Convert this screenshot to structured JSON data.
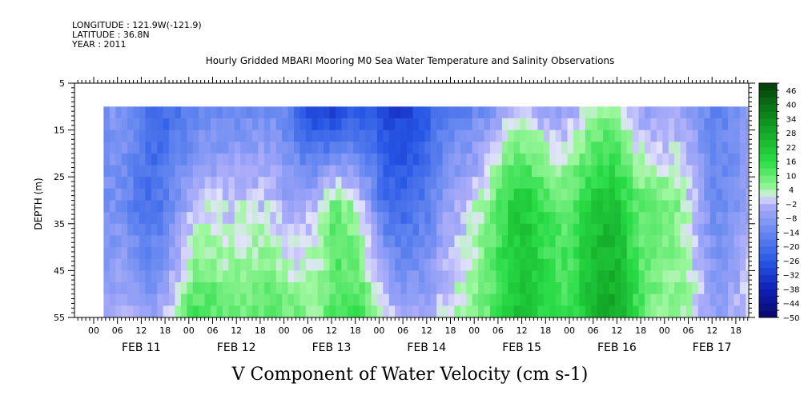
{
  "header": {
    "longitude": "LONGITUDE : 121.9W(-121.9)",
    "latitude": "LATITUDE : 36.8N",
    "year": "YEAR : 2011"
  },
  "chart_data": {
    "type": "heatmap",
    "title": "Hourly Gridded MBARI Mooring M0 Sea Water Temperature and Salinity Observations",
    "xlabel": "V Component of Water Velocity (cm s-1)",
    "ylabel": "DEPTH (m)",
    "y_ticks": [
      5,
      15,
      25,
      35,
      45,
      55
    ],
    "ylim": [
      5,
      55
    ],
    "y_inverted": true,
    "data_depth_range": [
      10,
      55
    ],
    "x_ticks": [
      "00",
      "06",
      "12",
      "18",
      "00",
      "06",
      "12",
      "18",
      "00",
      "06",
      "12",
      "18",
      "00",
      "06",
      "12",
      "18",
      "00",
      "06",
      "12",
      "18",
      "00",
      "06",
      "12",
      "18",
      "00",
      "06",
      "12",
      "18"
    ],
    "day_labels": [
      "FEB 11",
      "FEB 12",
      "FEB 13",
      "FEB 14",
      "FEB 15",
      "FEB 16",
      "FEB 17"
    ],
    "colorbar": {
      "labels": [
        46,
        40,
        34,
        28,
        22,
        16,
        10,
        4,
        -2,
        -8,
        -14,
        -20,
        -26,
        -32,
        -38,
        -44,
        -50
      ],
      "levels": [
        -50,
        -47,
        -44,
        -41,
        -38,
        -35,
        -32,
        -29,
        -26,
        -23,
        -20,
        -17,
        -14,
        -11,
        -8,
        -5,
        -2,
        1,
        4,
        7,
        10,
        13,
        16,
        19,
        22,
        25,
        28,
        31,
        34,
        37,
        40,
        43,
        46,
        49
      ]
    },
    "series": [
      {
        "approx_values_by_day": [
          {
            "time": "FEB 11 00",
            "surface": -12,
            "mid": -14,
            "bottom": -10
          },
          {
            "time": "FEB 11 12",
            "surface": -18,
            "mid": -20,
            "bottom": -6
          },
          {
            "time": "FEB 12 00",
            "surface": -24,
            "mid": -10,
            "bottom": 6
          },
          {
            "time": "FEB 12 12",
            "surface": -10,
            "mid": 4,
            "bottom": 12
          },
          {
            "time": "FEB 13 00",
            "surface": -18,
            "mid": -8,
            "bottom": 8
          },
          {
            "time": "FEB 13 12",
            "surface": -28,
            "mid": 14,
            "bottom": 16
          },
          {
            "time": "FEB 14 00",
            "surface": -24,
            "mid": -14,
            "bottom": 10
          },
          {
            "time": "FEB 14 12",
            "surface": -26,
            "mid": -18,
            "bottom": -6
          },
          {
            "time": "FEB 15 00",
            "surface": -10,
            "mid": 6,
            "bottom": 10
          },
          {
            "time": "FEB 15 12",
            "surface": -6,
            "mid": 14,
            "bottom": 16
          },
          {
            "time": "FEB 16 00",
            "surface": -4,
            "mid": 12,
            "bottom": 14
          },
          {
            "time": "FEB 16 12",
            "surface": 4,
            "mid": 20,
            "bottom": 28
          },
          {
            "time": "FEB 17 00",
            "surface": -6,
            "mid": 8,
            "bottom": 4
          },
          {
            "time": "FEB 17 12",
            "surface": -8,
            "mid": -6,
            "bottom": 2
          }
        ]
      }
    ]
  }
}
